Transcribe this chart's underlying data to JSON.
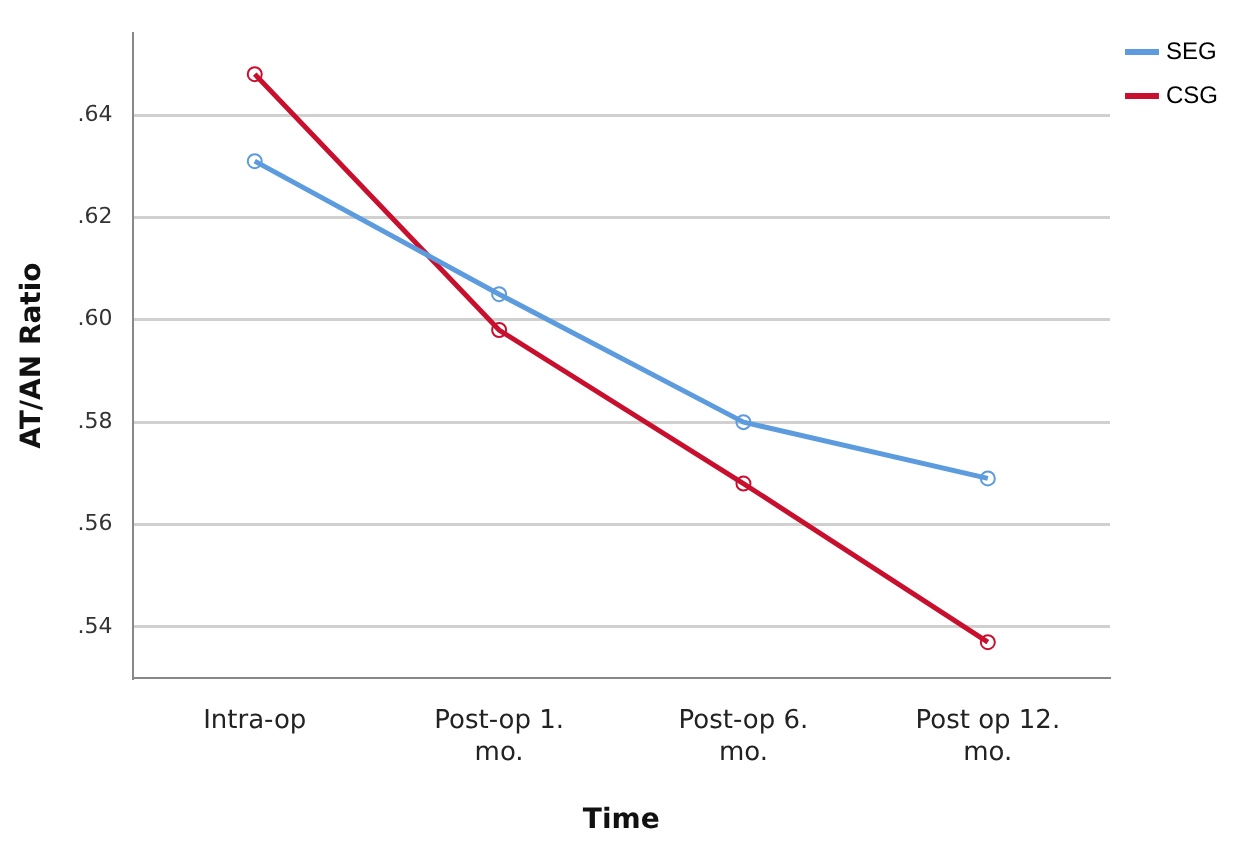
{
  "chart_data": {
    "type": "line",
    "xlabel": "Time",
    "ylabel": "AT/AN Ratio",
    "categories": [
      "Intra-op",
      "Post-op 1. mo.",
      "Post-op 6. mo.",
      "Post op 12. mo."
    ],
    "series": [
      {
        "name": "SEG",
        "color": "#5b9bde",
        "values": [
          0.631,
          0.605,
          0.58,
          0.569
        ]
      },
      {
        "name": "CSG",
        "color": "#c8102e",
        "values": [
          0.648,
          0.598,
          0.568,
          0.537
        ]
      }
    ],
    "ylim": [
      0.53,
      0.656
    ],
    "yticks": [
      {
        "value": 0.54,
        "label": ".54"
      },
      {
        "value": 0.56,
        "label": ".56"
      },
      {
        "value": 0.58,
        "label": ".58"
      },
      {
        "value": 0.6,
        "label": ".60"
      },
      {
        "value": 0.62,
        "label": ".62"
      },
      {
        "value": 0.64,
        "label": ".64"
      }
    ],
    "grid": "y",
    "legend": "top right",
    "marker": "circle",
    "line_style": "solid"
  }
}
